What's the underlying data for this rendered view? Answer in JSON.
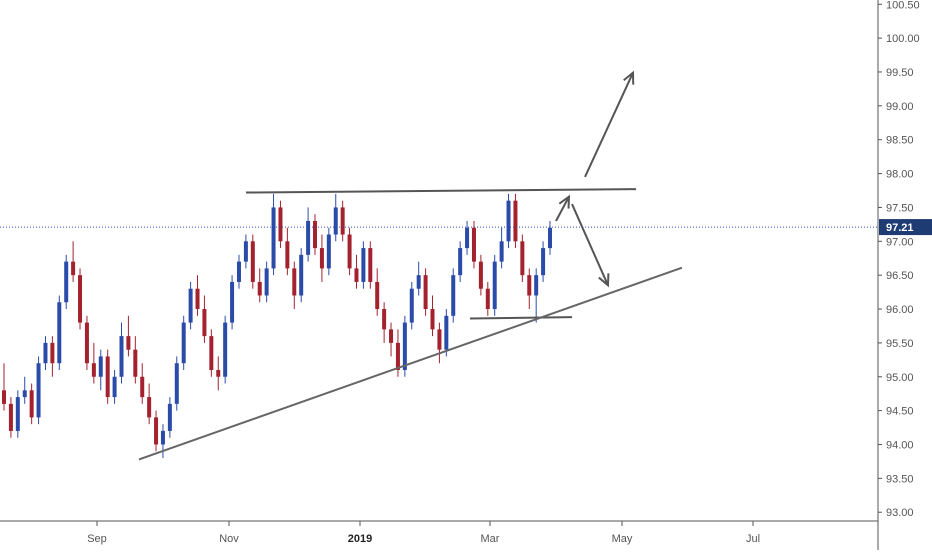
{
  "chart_data": {
    "type": "candlestick",
    "title": "",
    "y_axis": {
      "position": "right",
      "ticks": [
        "100.50",
        "100.00",
        "99.50",
        "99.00",
        "98.50",
        "98.00",
        "97.50",
        "97.00",
        "96.50",
        "96.00",
        "95.50",
        "95.00",
        "94.50",
        "94.00",
        "93.50",
        "93.00"
      ],
      "range": [
        92.9,
        100.6
      ]
    },
    "x_axis": {
      "ticks": [
        "Sep",
        "Nov",
        "2019",
        "Mar",
        "May",
        "Jul"
      ],
      "bold_ticks": [
        "2019"
      ]
    },
    "last_price": {
      "label": "97.21",
      "value": 97.21
    },
    "candles": [
      [
        94.8,
        95.2,
        94.5,
        94.6
      ],
      [
        94.6,
        94.7,
        94.1,
        94.2
      ],
      [
        94.2,
        94.8,
        94.1,
        94.7
      ],
      [
        94.7,
        95.0,
        94.6,
        94.8
      ],
      [
        94.8,
        94.9,
        94.3,
        94.4
      ],
      [
        94.4,
        95.3,
        94.3,
        95.2
      ],
      [
        95.2,
        95.6,
        95.1,
        95.5
      ],
      [
        95.5,
        95.6,
        95.0,
        95.2
      ],
      [
        95.2,
        96.2,
        95.1,
        96.1
      ],
      [
        96.1,
        96.8,
        96.0,
        96.7
      ],
      [
        96.7,
        97.0,
        96.4,
        96.5
      ],
      [
        96.5,
        96.6,
        95.7,
        95.8
      ],
      [
        95.8,
        95.9,
        95.1,
        95.2
      ],
      [
        95.2,
        95.5,
        94.9,
        95.0
      ],
      [
        95.0,
        95.4,
        94.8,
        95.3
      ],
      [
        95.3,
        95.4,
        94.6,
        94.7
      ],
      [
        94.7,
        95.1,
        94.6,
        95.0
      ],
      [
        95.0,
        95.8,
        94.9,
        95.6
      ],
      [
        95.6,
        95.9,
        95.3,
        95.4
      ],
      [
        95.4,
        95.6,
        94.9,
        95.0
      ],
      [
        95.0,
        95.2,
        94.6,
        94.7
      ],
      [
        94.7,
        94.9,
        94.3,
        94.4
      ],
      [
        94.4,
        94.5,
        93.9,
        94.0
      ],
      [
        94.0,
        94.3,
        93.8,
        94.2
      ],
      [
        94.2,
        94.7,
        94.1,
        94.6
      ],
      [
        94.6,
        95.3,
        94.5,
        95.2
      ],
      [
        95.2,
        95.9,
        95.1,
        95.8
      ],
      [
        95.8,
        96.4,
        95.7,
        96.3
      ],
      [
        96.3,
        96.5,
        95.9,
        96.0
      ],
      [
        96.0,
        96.2,
        95.5,
        95.6
      ],
      [
        95.6,
        95.7,
        95.0,
        95.1
      ],
      [
        95.1,
        95.3,
        94.8,
        95.0
      ],
      [
        95.0,
        95.9,
        94.9,
        95.8
      ],
      [
        95.8,
        96.5,
        95.7,
        96.4
      ],
      [
        96.4,
        96.8,
        96.3,
        96.7
      ],
      [
        96.7,
        97.1,
        96.6,
        97.0
      ],
      [
        97.0,
        97.1,
        96.3,
        96.4
      ],
      [
        96.4,
        96.6,
        96.1,
        96.2
      ],
      [
        96.2,
        96.7,
        96.1,
        96.6
      ],
      [
        96.6,
        97.7,
        96.5,
        97.5
      ],
      [
        97.5,
        97.6,
        96.9,
        97.0
      ],
      [
        97.0,
        97.2,
        96.5,
        96.6
      ],
      [
        96.6,
        96.7,
        96.0,
        96.2
      ],
      [
        96.2,
        96.9,
        96.1,
        96.8
      ],
      [
        96.8,
        97.5,
        96.7,
        97.3
      ],
      [
        97.3,
        97.4,
        96.8,
        96.9
      ],
      [
        96.9,
        97.1,
        96.4,
        96.6
      ],
      [
        96.6,
        97.2,
        96.5,
        97.1
      ],
      [
        97.1,
        97.7,
        97.0,
        97.5
      ],
      [
        97.5,
        97.6,
        97.0,
        97.1
      ],
      [
        97.1,
        97.2,
        96.5,
        96.6
      ],
      [
        96.6,
        96.8,
        96.3,
        96.4
      ],
      [
        96.4,
        97.0,
        96.3,
        96.9
      ],
      [
        96.9,
        97.0,
        96.3,
        96.4
      ],
      [
        96.4,
        96.6,
        95.9,
        96.0
      ],
      [
        96.0,
        96.1,
        95.5,
        95.7
      ],
      [
        95.7,
        95.8,
        95.3,
        95.5
      ],
      [
        95.5,
        95.7,
        95.0,
        95.1
      ],
      [
        95.1,
        95.9,
        95.0,
        95.8
      ],
      [
        95.8,
        96.4,
        95.7,
        96.3
      ],
      [
        96.3,
        96.7,
        96.2,
        96.5
      ],
      [
        96.5,
        96.6,
        95.9,
        96.0
      ],
      [
        96.0,
        96.2,
        95.6,
        95.7
      ],
      [
        95.7,
        95.8,
        95.2,
        95.4
      ],
      [
        95.4,
        96.0,
        95.3,
        95.9
      ],
      [
        95.9,
        96.6,
        95.8,
        96.5
      ],
      [
        96.5,
        97.0,
        96.4,
        96.9
      ],
      [
        96.9,
        97.3,
        96.8,
        97.2
      ],
      [
        97.2,
        97.3,
        96.6,
        96.7
      ],
      [
        96.7,
        96.8,
        96.2,
        96.3
      ],
      [
        96.3,
        96.4,
        95.9,
        96.0
      ],
      [
        96.0,
        96.8,
        95.9,
        96.7
      ],
      [
        96.7,
        97.2,
        96.6,
        97.0
      ],
      [
        97.0,
        97.7,
        96.9,
        97.6
      ],
      [
        97.6,
        97.7,
        96.9,
        97.0
      ],
      [
        97.0,
        97.1,
        96.4,
        96.5
      ],
      [
        96.5,
        96.6,
        96.0,
        96.2
      ],
      [
        96.2,
        96.6,
        95.8,
        96.5
      ],
      [
        96.5,
        97.0,
        96.4,
        96.9
      ],
      [
        96.9,
        97.3,
        96.8,
        97.2
      ]
    ],
    "bull_color": "#2b4ba8",
    "bear_color": "#a3222e",
    "drawings": {
      "resistance_line_color": "#555555",
      "support_trendline_color": "#666666"
    }
  },
  "axis": {
    "price_box_color": "#1f3b73",
    "price_line_color": "#2b4ba8"
  }
}
